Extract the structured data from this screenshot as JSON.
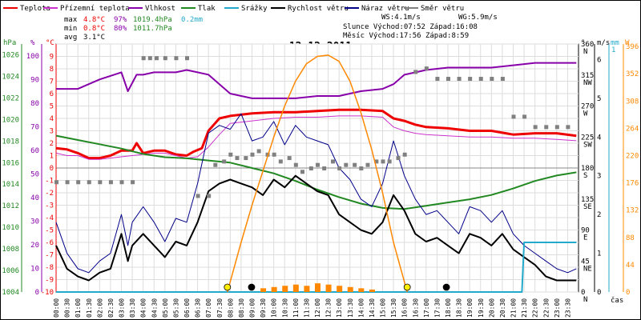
{
  "legend": [
    {
      "label": "Teplota",
      "color": "#ee0000"
    },
    {
      "label": "Přízemní teplota",
      "color": "#cc33cc"
    },
    {
      "label": "Vlhkost",
      "color": "#8800aa"
    },
    {
      "label": "Tlak",
      "color": "#228822"
    },
    {
      "label": "Srážky",
      "color": "#22aacc"
    },
    {
      "label": "Rychlost větru",
      "color": "#000000"
    },
    {
      "label": "Náraz větru",
      "color": "#000088"
    },
    {
      "label": "Směr větru",
      "color": "#808080"
    }
  ],
  "stats": {
    "max": {
      "label": "max",
      "temp": "4.8°C",
      "hum": "97%",
      "press": "1019.4hPa",
      "rain": "0.2mm"
    },
    "min": {
      "label": "min",
      "temp": "0.8°C",
      "hum": "80%",
      "press": "1011.7hPa"
    },
    "avg": {
      "label": "avg",
      "temp": "3.1°C"
    }
  },
  "astro": {
    "ws": "WS:4.1m/s",
    "wg": "WG:5.9m/s",
    "sun": "Slunce Východ:07:52  Západ:16:08",
    "moon": "Měsíc  Východ:17:56  Západ:8:59"
  },
  "colors": {
    "temp": "#ee0000",
    "ground": "#cc33cc",
    "hum": "#8800aa",
    "press": "#228822",
    "rain": "#22aacc",
    "wind": "#000000",
    "gust": "#000088",
    "dir": "#808080",
    "sun": "#ff8800",
    "precip": "#ff8800"
  },
  "chart_data": {
    "type": "line",
    "title": "12.12.2011",
    "xlabel": "čas",
    "time_ticks": [
      "00:00",
      "00:30",
      "01:00",
      "01:30",
      "02:00",
      "02:30",
      "03:00",
      "03:30",
      "04:00",
      "04:30",
      "05:00",
      "05:30",
      "06:00",
      "06:30",
      "07:00",
      "07:30",
      "08:00",
      "08:30",
      "09:00",
      "09:30",
      "10:00",
      "10:30",
      "11:00",
      "11:30",
      "12:00",
      "12:30",
      "13:00",
      "13:30",
      "14:00",
      "14:30",
      "15:00",
      "15:30",
      "16:00",
      "16:30",
      "17:00",
      "17:30",
      "18:00",
      "18:30",
      "19:00",
      "19:30",
      "20:00",
      "20:30",
      "21:00",
      "21:30",
      "22:00",
      "22:30",
      "23:00",
      "23:30"
    ],
    "axes": {
      "hpa": {
        "label": "hPa",
        "ticks": [
          "1026",
          "1024",
          "1022",
          "1020",
          "1018",
          "1016",
          "1014",
          "1012",
          "1010",
          "1008",
          "1006",
          "1004"
        ],
        "range": [
          1004,
          1027
        ]
      },
      "pct": {
        "label": "%",
        "ticks": [
          "100",
          "90",
          "80",
          "70",
          "60",
          "50",
          "40",
          "30",
          "20",
          "10",
          "0"
        ],
        "range": [
          0,
          105
        ]
      },
      "temp": {
        "label": "°C",
        "ticks": [
          "9",
          "8",
          "7",
          "6",
          "5",
          "4",
          "3",
          "2",
          "1",
          "0",
          "-1",
          "-2",
          "-3",
          "-4",
          "-5",
          "-6",
          "-7",
          "-8",
          "-9",
          "-10"
        ],
        "range": [
          -10,
          10
        ]
      },
      "dir": {
        "label": "°",
        "ticks": [
          "360 N",
          "315 NW",
          "270 W",
          "225 SW",
          "180 S",
          "135 SE",
          "90 E",
          "45 NE",
          "0 N"
        ],
        "range": [
          0,
          360
        ]
      },
      "ms": {
        "label": "m/s",
        "ticks": [
          "6",
          "5",
          "4",
          "3",
          "2",
          "1",
          "0"
        ],
        "range": [
          0,
          6.4
        ]
      },
      "mm": {
        "label": "mm",
        "ticks": [
          "1"
        ],
        "range": [
          0,
          1
        ]
      },
      "w": {
        "label": "W",
        "ticks": [
          "396",
          "352",
          "308",
          "264",
          "220",
          "176",
          "132",
          "88",
          "44",
          "0"
        ],
        "range": [
          0,
          400
        ]
      }
    },
    "series": [
      {
        "name": "Teplota",
        "axis": "temp",
        "x": [
          0,
          0.5,
          1,
          1.5,
          2,
          2.5,
          3,
          3.5,
          3.7,
          4,
          4.5,
          5,
          5.5,
          6,
          6.3,
          6.7,
          7,
          7.5,
          8,
          9,
          10,
          11,
          12,
          13,
          14,
          15,
          15.5,
          16,
          16.5,
          17,
          18,
          19,
          20,
          21,
          22,
          23,
          23.9
        ],
        "y": [
          1.6,
          1.5,
          1.2,
          0.8,
          0.8,
          1.0,
          1.4,
          1.4,
          2.0,
          1.2,
          1.4,
          1.4,
          1.1,
          1.0,
          1.3,
          1.6,
          3.0,
          4.0,
          4.2,
          4.4,
          4.5,
          4.5,
          4.6,
          4.7,
          4.7,
          4.6,
          4.0,
          3.8,
          3.5,
          3.3,
          3.2,
          3.0,
          3.0,
          2.7,
          2.8,
          2.8,
          2.6
        ]
      },
      {
        "name": "Přízemní teplota",
        "axis": "temp",
        "x": [
          0,
          0.5,
          1,
          1.5,
          2,
          2.5,
          3,
          3.5,
          4,
          4.5,
          5,
          5.5,
          6,
          6.5,
          7,
          7.5,
          8,
          9,
          10,
          11,
          12,
          13,
          14,
          15,
          15.5,
          16,
          16.5,
          17,
          18,
          19,
          20,
          21,
          22,
          23,
          23.9
        ],
        "y": [
          1.2,
          1.0,
          1.0,
          0.7,
          0.7,
          0.8,
          0.9,
          1.0,
          1.1,
          1.2,
          1.2,
          1.0,
          0.8,
          0.9,
          1.7,
          2.7,
          3.6,
          3.8,
          4.0,
          4.1,
          4.1,
          4.2,
          4.2,
          4.1,
          3.3,
          3.0,
          2.8,
          2.7,
          2.6,
          2.5,
          2.5,
          2.4,
          2.4,
          2.3,
          2.2
        ]
      },
      {
        "name": "Vlhkost",
        "axis": "pct",
        "x": [
          0,
          1,
          2,
          3,
          3.3,
          3.7,
          4,
          4.5,
          5,
          5.5,
          6,
          6.5,
          7,
          7.5,
          8,
          9,
          10,
          11,
          12,
          13,
          14,
          15,
          15.5,
          16,
          17,
          18,
          19,
          20,
          21,
          22,
          23,
          23.9
        ],
        "y": [
          86,
          86,
          90,
          93,
          85,
          92,
          92,
          93,
          93,
          93,
          94,
          93,
          92,
          88,
          84,
          82,
          82,
          82,
          83,
          83,
          85,
          86,
          88,
          92,
          94,
          95,
          95,
          95,
          96,
          97,
          97,
          97
        ]
      },
      {
        "name": "Tlak",
        "axis": "hpa",
        "x": [
          0,
          1,
          2,
          3,
          4,
          5,
          6,
          7,
          8,
          9,
          10,
          11,
          12,
          13,
          14,
          15,
          16,
          17,
          18,
          19,
          20,
          21,
          22,
          23,
          23.9
        ],
        "y": [
          1018.5,
          1018.1,
          1017.7,
          1017.3,
          1016.8,
          1016.5,
          1016.4,
          1016.2,
          1016.0,
          1015.5,
          1015.0,
          1014.3,
          1013.5,
          1012.8,
          1012.2,
          1011.8,
          1011.7,
          1012.0,
          1012.3,
          1012.6,
          1013.0,
          1013.6,
          1014.3,
          1014.8,
          1015.1
        ]
      },
      {
        "name": "Rychlost větru",
        "axis": "ms",
        "x": [
          0,
          0.5,
          1,
          1.5,
          2,
          2.5,
          3,
          3.3,
          3.5,
          4,
          4.5,
          5,
          5.5,
          6,
          6.5,
          7,
          7.5,
          8,
          8.5,
          9,
          9.5,
          10,
          10.5,
          11,
          11.5,
          12,
          12.5,
          13,
          13.5,
          14,
          14.5,
          15,
          15.5,
          16,
          16.5,
          17,
          17.5,
          18,
          18.5,
          19,
          19.5,
          20,
          20.5,
          21,
          21.5,
          22,
          22.5,
          23,
          23.5,
          23.9
        ],
        "y": [
          1.2,
          0.6,
          0.4,
          0.3,
          0.5,
          0.6,
          1.5,
          0.8,
          1.2,
          1.5,
          1.2,
          0.9,
          1.3,
          1.2,
          1.8,
          2.6,
          2.8,
          2.9,
          2.8,
          2.7,
          2.5,
          2.9,
          2.7,
          3.0,
          2.8,
          2.6,
          2.5,
          2.0,
          1.8,
          1.6,
          1.5,
          1.8,
          2.5,
          2.1,
          1.5,
          1.3,
          1.4,
          1.2,
          1.0,
          1.5,
          1.4,
          1.2,
          1.5,
          1.1,
          0.9,
          0.7,
          0.4,
          0.3,
          0.3,
          0.3
        ]
      },
      {
        "name": "Náraz větru",
        "axis": "ms",
        "x": [
          0,
          0.5,
          1,
          1.5,
          2,
          2.5,
          3,
          3.3,
          3.5,
          4,
          4.5,
          5,
          5.5,
          6,
          6.5,
          7,
          7.5,
          8,
          8.5,
          9,
          9.5,
          10,
          10.5,
          11,
          11.5,
          12,
          12.5,
          13,
          13.5,
          14,
          14.5,
          15,
          15.5,
          16,
          16.5,
          17,
          17.5,
          18,
          18.5,
          19,
          19.5,
          20,
          20.5,
          21,
          21.5,
          22,
          22.5,
          23,
          23.5,
          23.9
        ],
        "y": [
          1.8,
          1.0,
          0.6,
          0.5,
          0.8,
          1.0,
          2.0,
          1.2,
          1.8,
          2.2,
          1.8,
          1.3,
          1.9,
          1.8,
          2.8,
          4.1,
          4.3,
          4.2,
          4.6,
          3.9,
          4.0,
          4.4,
          3.8,
          4.3,
          4.0,
          3.9,
          3.8,
          3.2,
          2.9,
          2.4,
          2.2,
          2.8,
          3.9,
          3.0,
          2.4,
          2.0,
          2.1,
          1.8,
          1.5,
          2.2,
          2.1,
          1.8,
          2.1,
          1.5,
          1.2,
          1.0,
          0.8,
          0.6,
          0.5,
          0.6
        ]
      },
      {
        "name": "Srážky",
        "axis": "mm",
        "x": [
          0,
          20.5,
          21.4,
          21.5,
          23.9
        ],
        "y": [
          0,
          0,
          0,
          0.2,
          0.2
        ]
      },
      {
        "name": "Směr větru",
        "axis": "dir",
        "x": [
          0,
          0.5,
          1,
          1.5,
          2,
          2.5,
          3,
          3.5,
          4.0,
          4.3,
          4.6,
          5.0,
          5.5,
          6.0,
          6.5,
          7.0,
          7.3,
          7.7,
          8.0,
          8.3,
          8.7,
          9.0,
          9.3,
          9.7,
          10.0,
          10.3,
          10.7,
          11.0,
          11.3,
          11.7,
          12.0,
          12.3,
          12.7,
          13.0,
          13.3,
          13.7,
          14.0,
          14.3,
          14.7,
          15.0,
          15.3,
          15.7,
          16.0,
          16.5,
          17.0,
          17.5,
          18.0,
          18.5,
          19.0,
          19.5,
          20.0,
          20.5,
          21.0,
          21.5,
          22.0,
          22.5,
          23.0,
          23.5
        ],
        "y": [
          160,
          160,
          160,
          160,
          160,
          160,
          160,
          160,
          340,
          340,
          340,
          340,
          340,
          340,
          140,
          140,
          185,
          190,
          200,
          195,
          195,
          200,
          205,
          200,
          200,
          190,
          195,
          185,
          175,
          180,
          185,
          180,
          190,
          180,
          185,
          185,
          180,
          185,
          190,
          190,
          190,
          195,
          200,
          320,
          325,
          310,
          310,
          310,
          310,
          310,
          310,
          310,
          255,
          255,
          240,
          240,
          240,
          240
        ]
      },
      {
        "name": "Slunce",
        "axis": "w",
        "x": [
          7.87,
          8.5,
          9,
          9.5,
          10,
          10.5,
          11,
          11.5,
          12,
          12.5,
          13,
          13.5,
          14,
          14.5,
          15,
          15.5,
          16.13
        ],
        "y": [
          0,
          80,
          140,
          195,
          250,
          300,
          340,
          368,
          380,
          382,
          372,
          340,
          290,
          230,
          160,
          80,
          0
        ]
      },
      {
        "name": "Srážky (intenzita)",
        "axis": "w",
        "x": [
          9.5,
          10,
          10.5,
          11,
          11.5,
          12,
          12.5,
          13,
          13.5,
          14,
          14.5
        ],
        "y": [
          6,
          8,
          10,
          12,
          10,
          14,
          12,
          10,
          8,
          6,
          4
        ]
      }
    ],
    "events": [
      {
        "type": "sunrise",
        "time": 7.87,
        "color": "#ffee00"
      },
      {
        "type": "moonset",
        "time": 8.98,
        "color": "#000000"
      },
      {
        "type": "sunset",
        "time": 16.13,
        "color": "#ffee00"
      },
      {
        "type": "moonrise",
        "time": 17.93,
        "color": "#000000"
      }
    ]
  }
}
